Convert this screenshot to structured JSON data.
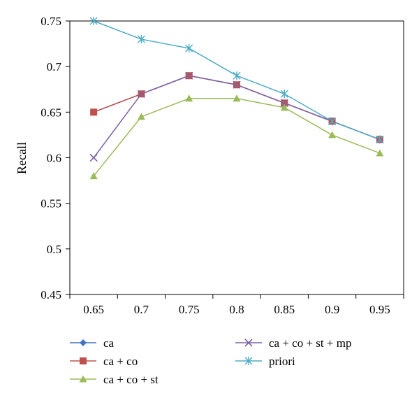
{
  "chart_data": {
    "type": "line",
    "title": "",
    "xlabel": "",
    "ylabel": "Recall",
    "x": [
      "0.65",
      "0.7",
      "0.75",
      "0.8",
      "0.85",
      "0.9",
      "0.95"
    ],
    "ylim": [
      0.45,
      0.75
    ],
    "yticks": [
      "0.45",
      "0.5",
      "0.55",
      "0.6",
      "0.65",
      "0.7",
      "0.75"
    ],
    "grid": false,
    "legend_position": "bottom",
    "series": [
      {
        "name": "ca",
        "marker": "diamond",
        "color": "#4472C4",
        "values": [
          0.65,
          0.67,
          0.69,
          0.68,
          0.66,
          0.64,
          0.62
        ]
      },
      {
        "name": "ca + co",
        "marker": "square",
        "color": "#C0504D",
        "values": [
          0.65,
          0.67,
          0.69,
          0.68,
          0.66,
          0.64,
          0.62
        ]
      },
      {
        "name": "ca + co + st",
        "marker": "triangle",
        "color": "#9BBB59",
        "values": [
          0.58,
          0.645,
          0.665,
          0.665,
          0.655,
          0.625,
          0.605
        ]
      },
      {
        "name": "ca + co + st + mp",
        "marker": "x",
        "color": "#8064A2",
        "values": [
          0.6,
          0.67,
          0.69,
          0.68,
          0.66,
          0.64,
          0.62
        ]
      },
      {
        "name": "priori",
        "marker": "star",
        "color": "#4BACC6",
        "values": [
          0.75,
          0.73,
          0.72,
          0.69,
          0.67,
          0.64,
          0.62
        ]
      }
    ]
  }
}
